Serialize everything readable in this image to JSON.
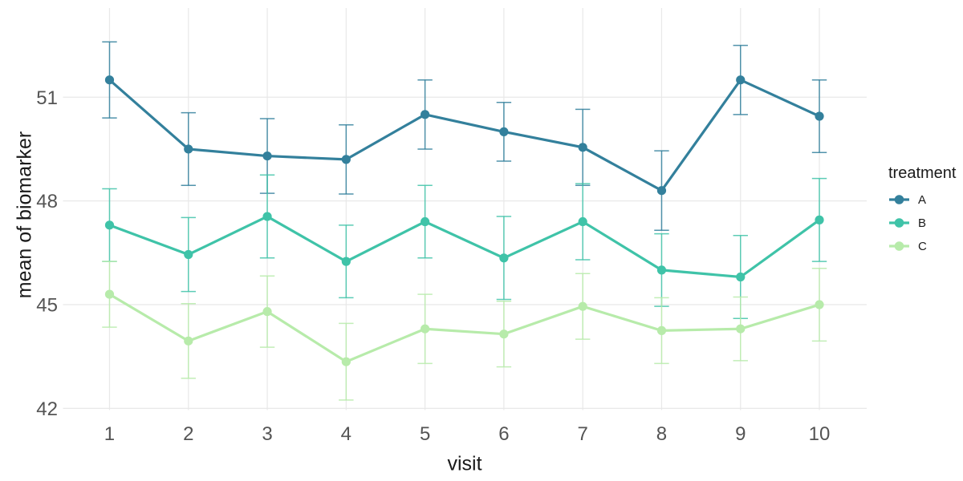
{
  "chart_data": {
    "type": "line",
    "title": "",
    "xlabel": "visit",
    "ylabel": "mean of biomarker",
    "x": [
      1,
      2,
      3,
      4,
      5,
      6,
      7,
      8,
      9,
      10
    ],
    "x_ticks": [
      1,
      2,
      3,
      4,
      5,
      6,
      7,
      8,
      9,
      10
    ],
    "y_ticks": [
      42,
      45,
      48,
      51
    ],
    "xlim": [
      0.41,
      10.6
    ],
    "ylim": [
      41.94,
      53.58
    ],
    "grid": true,
    "error_bars": true,
    "legend": {
      "title": "treatment",
      "position": "right"
    },
    "series": [
      {
        "name": "A",
        "color": "#33809c",
        "values": [
          51.5,
          49.5,
          49.3,
          49.2,
          50.5,
          50.0,
          49.55,
          48.3,
          51.5,
          50.45
        ],
        "errors": [
          1.1,
          1.05,
          1.08,
          1.0,
          1.0,
          0.85,
          1.1,
          1.15,
          1.0,
          1.05
        ]
      },
      {
        "name": "B",
        "color": "#3fc3a8",
        "values": [
          47.3,
          46.45,
          47.55,
          46.25,
          47.4,
          46.35,
          47.4,
          46.0,
          45.8,
          47.45
        ],
        "errors": [
          1.05,
          1.07,
          1.2,
          1.05,
          1.05,
          1.2,
          1.1,
          1.05,
          1.2,
          1.2
        ]
      },
      {
        "name": "C",
        "color": "#b7ebaa",
        "values": [
          45.3,
          43.95,
          44.8,
          43.35,
          44.3,
          44.15,
          44.95,
          44.25,
          44.3,
          45.0
        ],
        "errors": [
          0.95,
          1.08,
          1.03,
          1.11,
          1.0,
          0.95,
          0.95,
          0.95,
          0.92,
          1.05
        ]
      }
    ],
    "style": {
      "background": "#ffffff",
      "grid_color": "#e8e8e8",
      "tick_label_color": "#545454",
      "title_color": "#1a1a1a"
    }
  }
}
